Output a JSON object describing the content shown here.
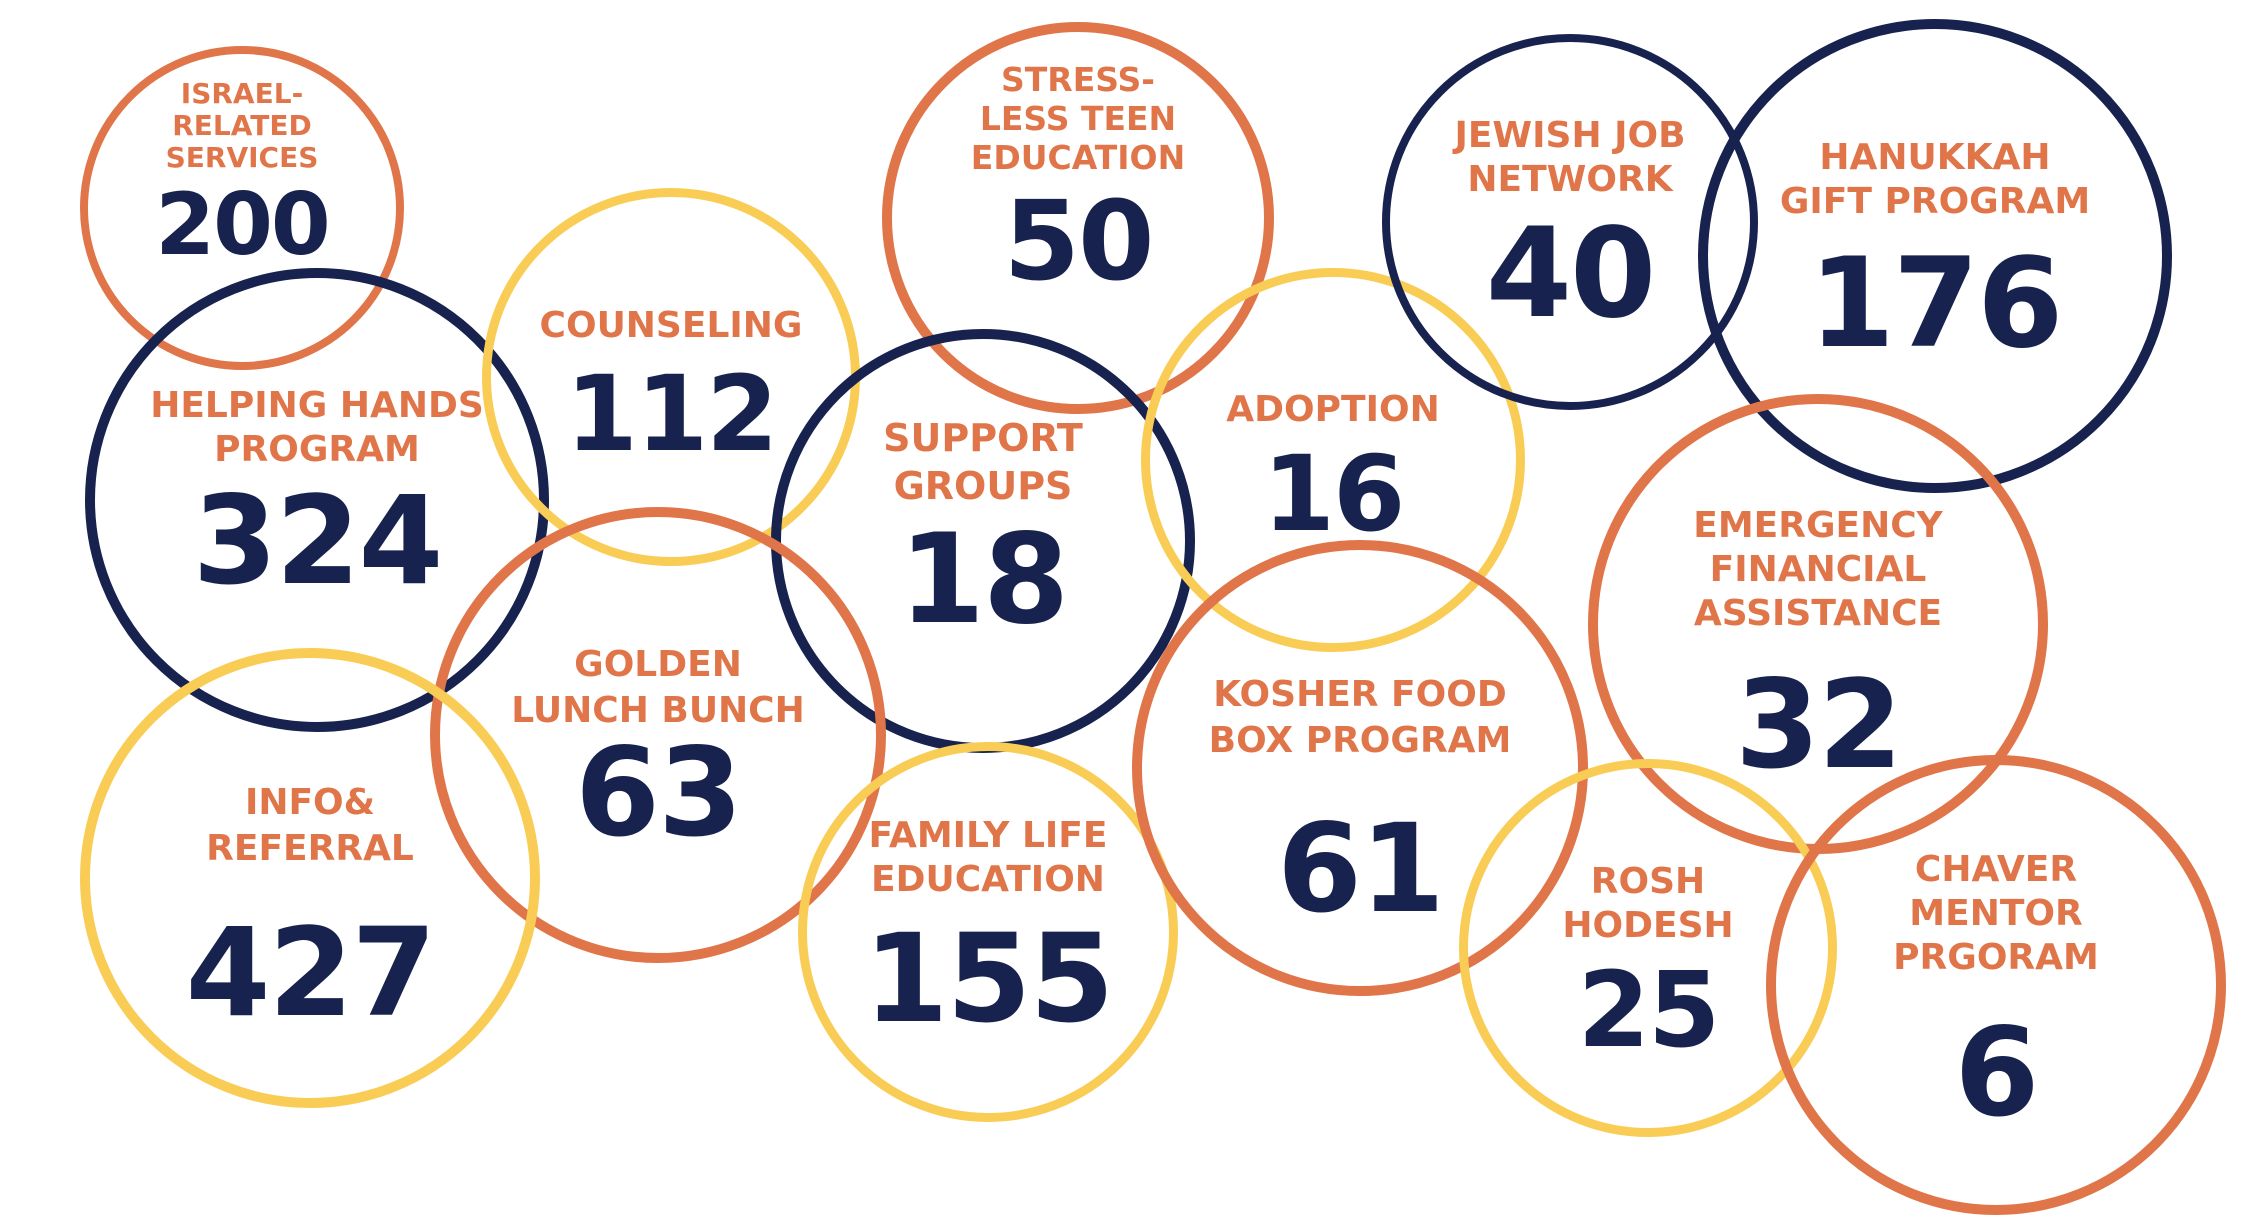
{
  "colors": {
    "navy": "#17234e",
    "orange": "#e07549",
    "yellow": "#f9cd55",
    "label_text": "#e07549",
    "value_text": "#17234e"
  },
  "programs": [
    {
      "id": "israel",
      "label": "ISRAEL-\nRELATED\nSERVICES",
      "value": "200",
      "ring": "orange"
    },
    {
      "id": "helping",
      "label": "HELPING HANDS\nPROGRAM",
      "value": "324",
      "ring": "navy"
    },
    {
      "id": "counseling",
      "label": "COUNSELING",
      "value": "112",
      "ring": "yellow"
    },
    {
      "id": "stress",
      "label": "STRESS-\nLESS TEEN\nEDUCATION",
      "value": "50",
      "ring": "orange"
    },
    {
      "id": "support",
      "label": "SUPPORT\nGROUPS",
      "value": "18",
      "ring": "navy"
    },
    {
      "id": "adoption",
      "label": "ADOPTION",
      "value": "16",
      "ring": "yellow"
    },
    {
      "id": "jobnet",
      "label": "JEWISH JOB\nNETWORK",
      "value": "40",
      "ring": "navy"
    },
    {
      "id": "hanukkah",
      "label": "HANUKKAH\nGIFT PROGRAM",
      "value": "176",
      "ring": "navy"
    },
    {
      "id": "golden",
      "label": "GOLDEN\nLUNCH BUNCH",
      "value": "63",
      "ring": "orange"
    },
    {
      "id": "info",
      "label": "INFO&\nREFERRAL",
      "value": "427",
      "ring": "yellow"
    },
    {
      "id": "family",
      "label": "FAMILY LIFE\nEDUCATION",
      "value": "155",
      "ring": "yellow"
    },
    {
      "id": "kosher",
      "label": "KOSHER FOOD\nBOX PROGRAM",
      "value": "61",
      "ring": "orange"
    },
    {
      "id": "emergency",
      "label": "EMERGENCY\nFINANCIAL\nASSISTANCE",
      "value": "32",
      "ring": "orange"
    },
    {
      "id": "rosh",
      "label": "ROSH\nHODESH",
      "value": "25",
      "ring": "yellow"
    },
    {
      "id": "chaver",
      "label": "CHAVER\nMENTOR\nPRGORAM",
      "value": "6",
      "ring": "orange"
    }
  ]
}
